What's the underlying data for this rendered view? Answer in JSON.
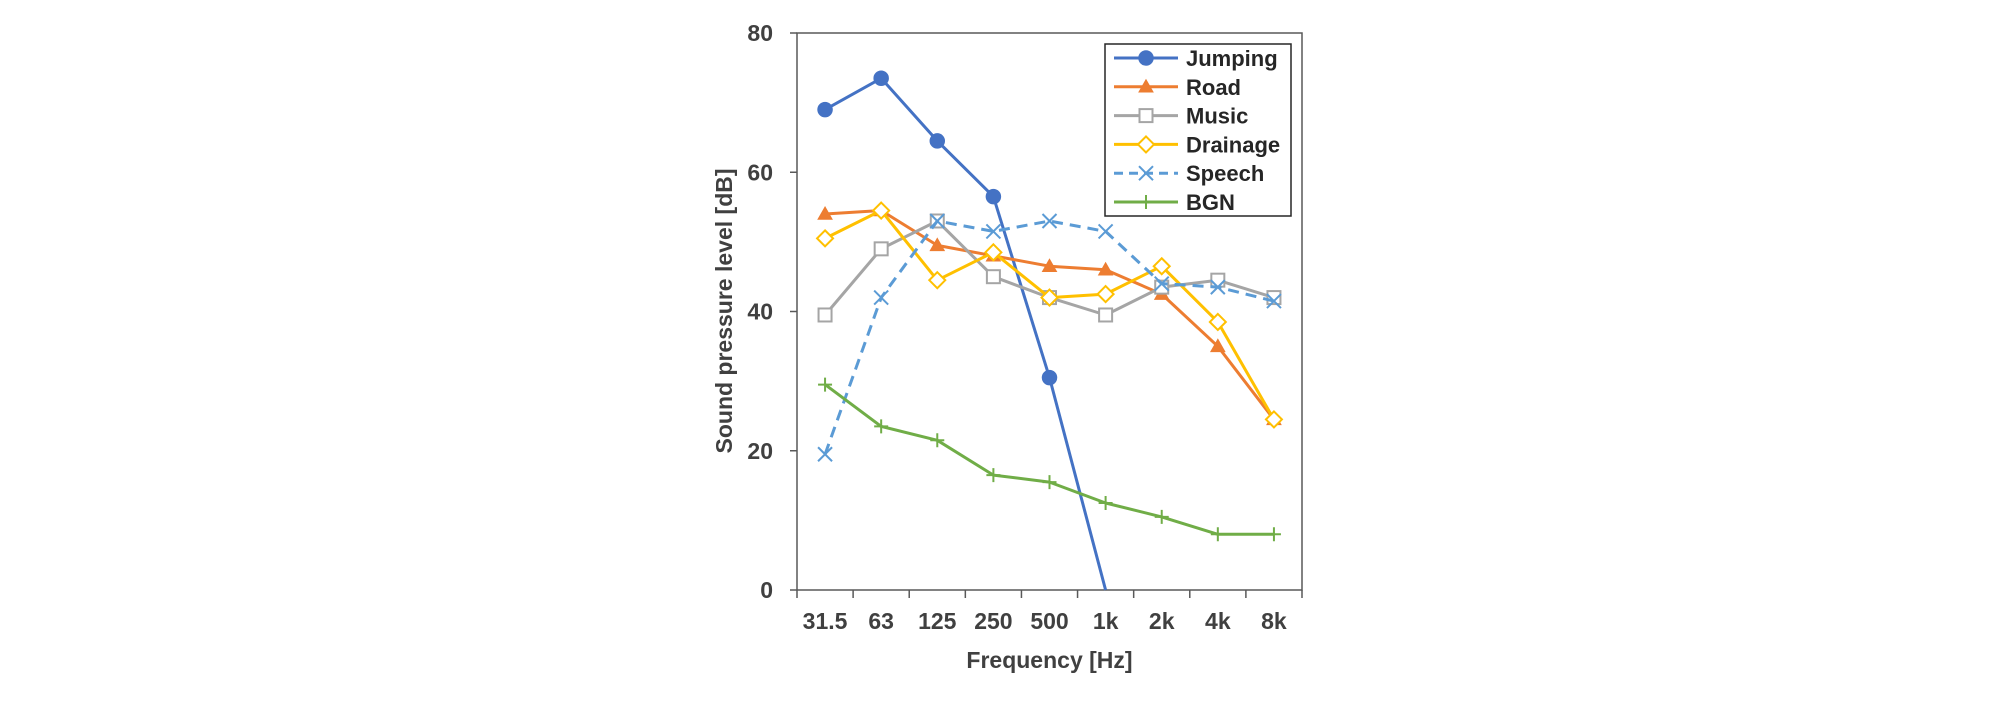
{
  "chart_data": {
    "type": "line",
    "title": "",
    "xlabel": "Frequency [Hz]",
    "ylabel": "Sound pressure level [dB]",
    "categories": [
      "31.5",
      "63",
      "125",
      "250",
      "500",
      "1k",
      "2k",
      "4k",
      "8k"
    ],
    "ylim": [
      0,
      80
    ],
    "yticks": [
      "0",
      "20",
      "40",
      "60",
      "80"
    ],
    "grid": false,
    "legend_position": "top-right",
    "series": [
      {
        "name": "Jumping",
        "color": "#4472C4",
        "marker": "filled-circle",
        "dashed": false,
        "values": [
          69,
          73.5,
          64.5,
          56.5,
          30.5,
          0,
          null,
          null,
          null
        ]
      },
      {
        "name": "Road",
        "color": "#ED7D31",
        "marker": "filled-triangle",
        "dashed": false,
        "values": [
          54,
          54.5,
          49.5,
          48,
          46.5,
          46,
          42.5,
          35,
          24.5
        ]
      },
      {
        "name": "Music",
        "color": "#A5A5A5",
        "marker": "open-square",
        "dashed": false,
        "values": [
          39.5,
          49,
          53,
          45,
          42,
          39.5,
          43.5,
          44.5,
          42
        ]
      },
      {
        "name": "Drainage",
        "color": "#FFC000",
        "marker": "open-diamond",
        "dashed": false,
        "values": [
          50.5,
          54.5,
          44.5,
          48.5,
          42,
          42.5,
          46.5,
          38.5,
          24.5
        ]
      },
      {
        "name": "Speech",
        "color": "#5B9BD5",
        "marker": "x",
        "dashed": true,
        "values": [
          19.5,
          42,
          53,
          51.5,
          53,
          51.5,
          44,
          43.5,
          41.5
        ]
      },
      {
        "name": "BGN",
        "color": "#70AD47",
        "marker": "plus",
        "dashed": false,
        "values": [
          29.5,
          23.5,
          21.5,
          16.5,
          15.5,
          12.5,
          10.5,
          8,
          8
        ]
      }
    ]
  }
}
